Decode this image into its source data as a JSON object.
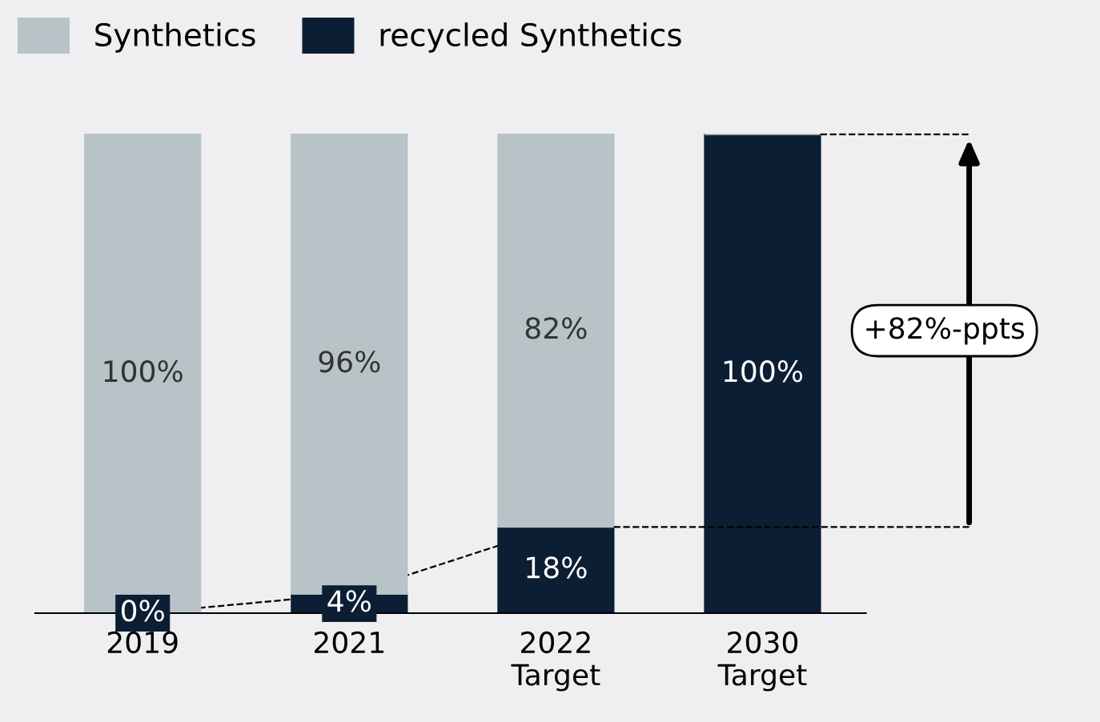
{
  "chart_data": {
    "type": "bar",
    "stacked": true,
    "categories": [
      "2019",
      "2021",
      "2022\nTarget",
      "2030\nTarget"
    ],
    "series": [
      {
        "name": "recycled Synthetics",
        "color": "#0c1e33",
        "values": [
          0,
          4,
          18,
          100
        ],
        "value_labels": [
          "0%",
          "4%",
          "18%",
          "100%"
        ]
      },
      {
        "name": "Synthetics",
        "color": "#b7c3c7",
        "values": [
          100,
          96,
          82,
          0
        ],
        "value_labels": [
          "100%",
          "96%",
          "82%",
          null
        ]
      },
      {
        "type": "line",
        "color": "#000000",
        "line_style": "dashed",
        "values": [
          0,
          4,
          18,
          null
        ]
      }
    ],
    "annotations": [
      "+82%-ppts"
    ],
    "ref_lines": [
      {
        "axis": "y",
        "value": 18,
        "color": "#000000",
        "line_style": "dashed"
      }
    ],
    "legend": "top left",
    "grid": false
  }
}
